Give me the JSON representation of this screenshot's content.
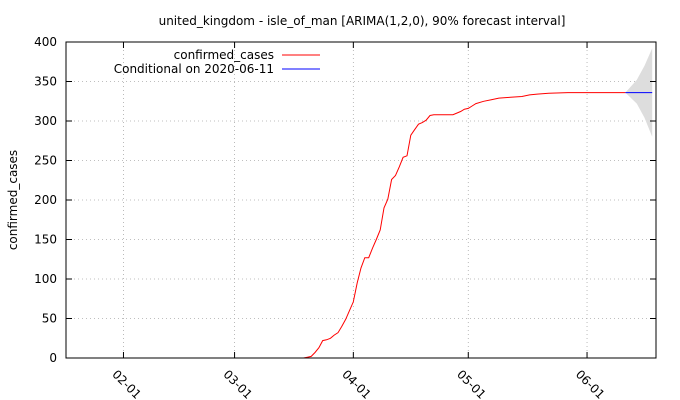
{
  "chart_data": {
    "type": "line",
    "title": "united_kingdom - isle_of_man [ARIMA(1,2,0), 90% forecast interval]",
    "xlabel": "",
    "ylabel": "confirmed_cases",
    "ylim": [
      0,
      400
    ],
    "xlim": [
      "2020-01-17",
      "2020-06-19"
    ],
    "grid": true,
    "legend_position": "top-left",
    "y_ticks": [
      0,
      50,
      100,
      150,
      200,
      250,
      300,
      350,
      400
    ],
    "x_ticks": [
      {
        "date": "2020-02-01",
        "label": "02-01"
      },
      {
        "date": "2020-03-01",
        "label": "03-01"
      },
      {
        "date": "2020-04-01",
        "label": "04-01"
      },
      {
        "date": "2020-05-01",
        "label": "05-01"
      },
      {
        "date": "2020-06-01",
        "label": "06-01"
      }
    ],
    "series": [
      {
        "name": "confirmed_cases",
        "color": "#ff0000",
        "points": [
          [
            "2020-03-19",
            0
          ],
          [
            "2020-03-20",
            1
          ],
          [
            "2020-03-21",
            2
          ],
          [
            "2020-03-22",
            7
          ],
          [
            "2020-03-23",
            13
          ],
          [
            "2020-03-24",
            22
          ],
          [
            "2020-03-25",
            23
          ],
          [
            "2020-03-26",
            25
          ],
          [
            "2020-03-27",
            29
          ],
          [
            "2020-03-28",
            32
          ],
          [
            "2020-03-29",
            40
          ],
          [
            "2020-03-30",
            49
          ],
          [
            "2020-03-31",
            60
          ],
          [
            "2020-04-01",
            71
          ],
          [
            "2020-04-02",
            95
          ],
          [
            "2020-04-03",
            114
          ],
          [
            "2020-04-04",
            127
          ],
          [
            "2020-04-05",
            127
          ],
          [
            "2020-04-06",
            139
          ],
          [
            "2020-04-07",
            150
          ],
          [
            "2020-04-08",
            162
          ],
          [
            "2020-04-09",
            190
          ],
          [
            "2020-04-10",
            201
          ],
          [
            "2020-04-11",
            226
          ],
          [
            "2020-04-12",
            231
          ],
          [
            "2020-04-13",
            242
          ],
          [
            "2020-04-14",
            254
          ],
          [
            "2020-04-15",
            256
          ],
          [
            "2020-04-16",
            282
          ],
          [
            "2020-04-17",
            289
          ],
          [
            "2020-04-18",
            296
          ],
          [
            "2020-04-19",
            298
          ],
          [
            "2020-04-20",
            301
          ],
          [
            "2020-04-21",
            307
          ],
          [
            "2020-04-22",
            308
          ],
          [
            "2020-04-27",
            308
          ],
          [
            "2020-04-28",
            310
          ],
          [
            "2020-04-29",
            312
          ],
          [
            "2020-04-30",
            315
          ],
          [
            "2020-05-01",
            316
          ],
          [
            "2020-05-02",
            319
          ],
          [
            "2020-05-03",
            322
          ],
          [
            "2020-05-05",
            325
          ],
          [
            "2020-05-07",
            327
          ],
          [
            "2020-05-09",
            329
          ],
          [
            "2020-05-12",
            330
          ],
          [
            "2020-05-15",
            331
          ],
          [
            "2020-05-17",
            333
          ],
          [
            "2020-05-19",
            334
          ],
          [
            "2020-05-22",
            335
          ],
          [
            "2020-05-27",
            336
          ],
          [
            "2020-06-11",
            336
          ]
        ]
      },
      {
        "name": "Conditional on 2020-06-11",
        "color": "#0000ff",
        "points": [
          [
            "2020-06-11",
            336
          ],
          [
            "2020-06-18",
            336
          ]
        ]
      }
    ],
    "forecast_interval": {
      "color": "#dddddd",
      "lower": [
        [
          "2020-06-11",
          336
        ],
        [
          "2020-06-14",
          322
        ],
        [
          "2020-06-16",
          304
        ],
        [
          "2020-06-18",
          280
        ]
      ],
      "upper": [
        [
          "2020-06-11",
          336
        ],
        [
          "2020-06-14",
          352
        ],
        [
          "2020-06-16",
          370
        ],
        [
          "2020-06-18",
          392
        ]
      ]
    }
  }
}
